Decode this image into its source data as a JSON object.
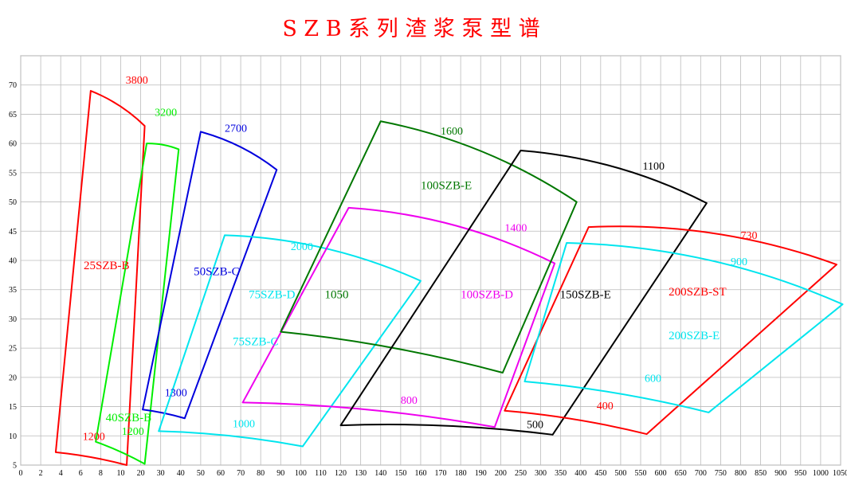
{
  "chart_data": {
    "type": "line",
    "title": "S Z B 系 列 渣 浆 泵 型 谱",
    "colors": {
      "title": "#ff0000",
      "grid": "#bbbbbb",
      "red": "#ff0000",
      "green": "#00ee00",
      "blue": "#0000dd",
      "cyan": "#00e5ee",
      "darkgreen": "#007700",
      "magenta": "#ee00ee",
      "black": "#000000"
    },
    "x_axis": {
      "ticks": [
        0,
        2,
        4,
        6,
        8,
        10,
        20,
        30,
        40,
        50,
        60,
        70,
        80,
        90,
        100,
        110,
        120,
        130,
        140,
        150,
        160,
        170,
        180,
        190,
        200,
        250,
        300,
        350,
        400,
        450,
        500,
        550,
        600,
        650,
        700,
        750,
        800,
        850,
        900,
        950,
        1000,
        1050
      ]
    },
    "y_axis": {
      "ylim": [
        5,
        75
      ],
      "ticks": [
        5,
        10,
        15,
        20,
        25,
        30,
        35,
        40,
        45,
        50,
        55,
        60,
        65,
        70
      ]
    },
    "regions": [
      {
        "name": "25SZB-B",
        "color": "red",
        "points": [
          [
            3.5,
            7.2
          ],
          [
            13,
            5
          ],
          [
            22,
            63
          ],
          [
            7,
            69
          ]
        ],
        "label": {
          "text": "25SZB-B",
          "at": [
            6.3,
            38.5
          ]
        },
        "speeds": [
          {
            "text": "3800",
            "at": [
              12.5,
              70.2
            ]
          },
          {
            "text": "1200",
            "at": [
              6.2,
              9.3
            ]
          }
        ]
      },
      {
        "name": "40SZB-B",
        "color": "green",
        "points": [
          [
            7.5,
            9
          ],
          [
            22,
            5.2
          ],
          [
            39,
            59
          ],
          [
            23,
            60
          ]
        ],
        "label": {
          "text": "40SZB-B",
          "at": [
            8.5,
            12.5
          ]
        },
        "speeds": [
          {
            "text": "3200",
            "at": [
              27,
              64.7
            ]
          },
          {
            "text": "1200",
            "at": [
              10.5,
              10.2
            ]
          }
        ]
      },
      {
        "name": "50SZB-C",
        "color": "blue",
        "points": [
          [
            21,
            14.5
          ],
          [
            42,
            13
          ],
          [
            88,
            55.5
          ],
          [
            50,
            62
          ]
        ],
        "label": {
          "text": "50SZB-C",
          "at": [
            46.5,
            37.5
          ]
        },
        "speeds": [
          {
            "text": "2700",
            "at": [
              62,
              62
            ]
          },
          {
            "text": "1300",
            "at": [
              32,
              16.8
            ]
          }
        ]
      },
      {
        "name": "75SZB-D",
        "color": "cyan",
        "points": [
          [
            29,
            10.8
          ],
          [
            101,
            8.2
          ],
          [
            160,
            36.5
          ],
          [
            62,
            44.3
          ]
        ],
        "label": {
          "text": "75SZB-D",
          "at": [
            74,
            33.5
          ]
        },
        "label2": {
          "text": "75SZB-C",
          "at": [
            66,
            25.5
          ]
        },
        "speeds": [
          {
            "text": "2000",
            "at": [
              95,
              41.8
            ]
          },
          {
            "text": "1000",
            "at": [
              66,
              11.5
            ]
          }
        ]
      },
      {
        "name": "100SZB-D",
        "color": "magenta",
        "points": [
          [
            71,
            15.7
          ],
          [
            197,
            11.5
          ],
          [
            335,
            39.5
          ],
          [
            124,
            49
          ]
        ],
        "label": {
          "text": "100SZB-D",
          "at": [
            180,
            33.5
          ]
        },
        "speeds": [
          {
            "text": "1400",
            "at": [
              210,
              45
            ]
          },
          {
            "text": "800",
            "at": [
              150,
              15.5
            ]
          }
        ]
      },
      {
        "name": "100SZB-E",
        "color": "darkgreen",
        "points": [
          [
            90,
            27.8
          ],
          [
            205,
            20.8
          ],
          [
            390,
            50
          ],
          [
            140,
            63.8
          ]
        ],
        "label": {
          "text": "100SZB-E",
          "at": [
            160,
            52.2
          ]
        },
        "label2": {
          "text": "1050",
          "at": [
            112,
            33.5
          ]
        },
        "speeds": [
          {
            "text": "1600",
            "at": [
              170,
              61.5
            ]
          }
        ]
      },
      {
        "name": "150SZB-E",
        "color": "black",
        "points": [
          [
            120,
            11.8
          ],
          [
            330,
            10.2
          ],
          [
            715,
            49.8
          ],
          [
            250,
            58.8
          ]
        ],
        "label": {
          "text": "150SZB-E",
          "at": [
            348,
            33.5
          ]
        },
        "speeds": [
          {
            "text": "1100",
            "at": [
              555,
              55.5
            ]
          },
          {
            "text": "500",
            "at": [
              265,
              11.3
            ]
          }
        ]
      },
      {
        "name": "200SZB-ST",
        "color": "red",
        "points": [
          [
            210,
            14.3
          ],
          [
            565,
            10.3
          ],
          [
            1040,
            39.3
          ],
          [
            420,
            45.7
          ]
        ],
        "label": {
          "text": "200SZB-ST",
          "at": [
            620,
            34
          ]
        },
        "speeds": [
          {
            "text": "730",
            "at": [
              800,
              43.7
            ]
          },
          {
            "text": "400",
            "at": [
              440,
              14.5
            ]
          }
        ]
      },
      {
        "name": "200SZB-E",
        "color": "cyan",
        "points": [
          [
            260,
            19.3
          ],
          [
            720,
            14
          ],
          [
            1055,
            32.5
          ],
          [
            365,
            43
          ]
        ],
        "label": {
          "text": "200SZB-E",
          "at": [
            620,
            26.5
          ]
        },
        "speeds": [
          {
            "text": "900",
            "at": [
              775,
              39.2
            ]
          },
          {
            "text": "600",
            "at": [
              560,
              19.2
            ]
          }
        ]
      }
    ]
  }
}
